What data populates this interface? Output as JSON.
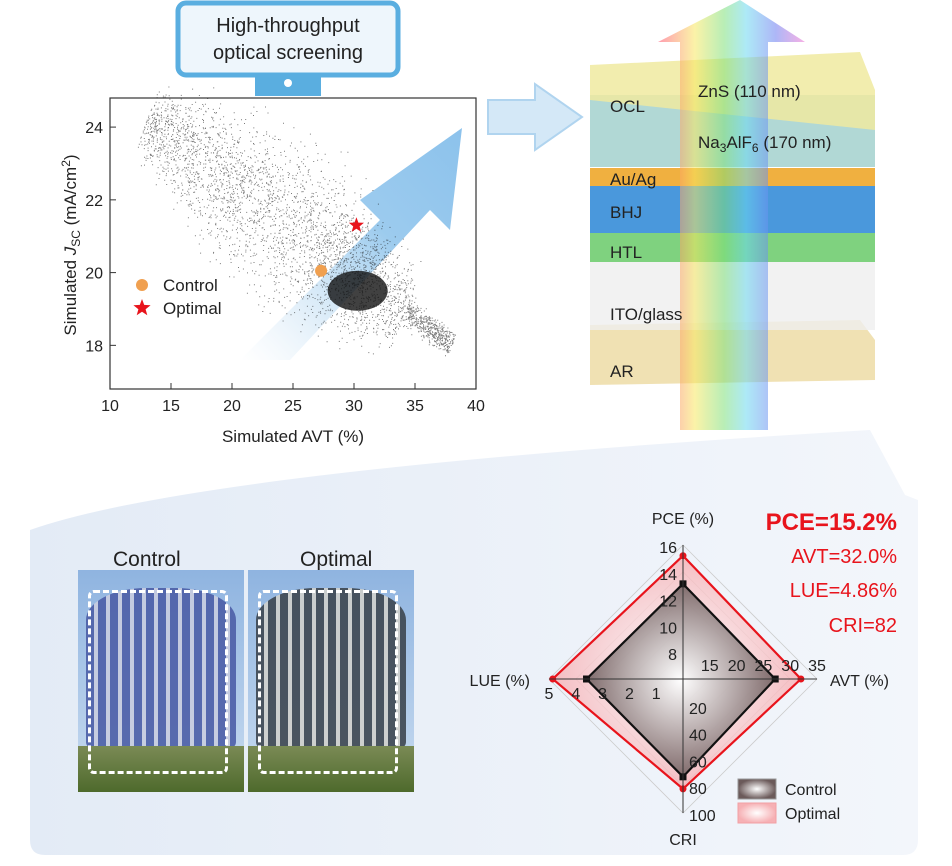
{
  "monitor": {
    "line1": "High-throughput",
    "line2": "optical screening"
  },
  "device": {
    "layers": [
      {
        "label": "OCL"
      },
      {
        "label": "Au/Ag"
      },
      {
        "label": "BHJ"
      },
      {
        "label": "HTL"
      },
      {
        "label": "ITO/glass"
      },
      {
        "label": "AR"
      }
    ],
    "zns": "ZnS (110 nm)",
    "naalf": {
      "a": "Na",
      "s1": "3",
      "b": "AlF",
      "s2": "6",
      "c": " (170 nm)"
    }
  },
  "photos": {
    "control": "Control",
    "optimal": "Optimal"
  },
  "results": {
    "pce": "PCE=15.2%",
    "avt": "AVT=32.0%",
    "lue": "LUE=4.86%",
    "cri": "CRI=82"
  },
  "colors": {
    "optimal": "#e8141c",
    "control": "#111111",
    "control_marker": "#f0a050",
    "panel": "#eaf0f8"
  },
  "chart_data": [
    {
      "type": "scatter",
      "xlabel": "Simulated AVT (%)",
      "ylabel": {
        "a": "Simulated ",
        "b": "J",
        "sub": "SC",
        "c": " (mA/cm",
        "sup": "2",
        "d": ")"
      },
      "xlim": [
        10,
        40
      ],
      "ylim": [
        16.8,
        24.8
      ],
      "xticks": [
        "10",
        "15",
        "20",
        "25",
        "30",
        "35",
        "40"
      ],
      "yticks": [
        "18",
        "20",
        "22",
        "24"
      ],
      "legend": "left",
      "series": [
        {
          "name": "Control",
          "marker": "circle",
          "points": [
            [
              27.3,
              20.05
            ]
          ]
        },
        {
          "name": "Optimal",
          "marker": "star",
          "points": [
            [
              30.2,
              21.3
            ]
          ]
        }
      ]
    },
    {
      "type": "radar",
      "axes": [
        {
          "label": "PCE (%)",
          "ticks": [
            "8",
            "10",
            "12",
            "14",
            "16"
          ],
          "range": [
            6,
            16
          ]
        },
        {
          "label": "AVT (%)",
          "ticks": [
            "15",
            "20",
            "25",
            "30",
            "35"
          ],
          "range": [
            10,
            35
          ]
        },
        {
          "label": "CRI",
          "ticks": [
            "20",
            "40",
            "60",
            "80",
            "100"
          ],
          "range": [
            0,
            100
          ]
        },
        {
          "label": "LUE (%)",
          "ticks": [
            "1",
            "2",
            "3",
            "4",
            "5"
          ],
          "range": [
            0,
            5
          ]
        }
      ],
      "series": [
        {
          "name": "Control",
          "values": [
            13.1,
            27.2,
            73,
            3.6
          ]
        },
        {
          "name": "Optimal",
          "values": [
            15.2,
            32.0,
            82,
            4.86
          ]
        }
      ],
      "legend": "bottom-right"
    }
  ]
}
